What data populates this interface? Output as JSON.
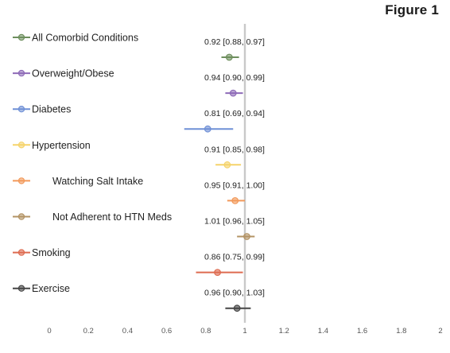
{
  "figure_label": "Figure 1",
  "chart_data": {
    "type": "forest",
    "title": "",
    "xlabel": "",
    "ylabel": "",
    "xlim": [
      0,
      2
    ],
    "x_ticks": [
      0,
      0.2,
      0.4,
      0.6,
      0.8,
      1,
      1.2,
      1.4,
      1.6,
      1.8,
      2
    ],
    "x_tick_labels": [
      "0",
      "0.2",
      "0.4",
      "0.6",
      "0.8",
      "1",
      "1.2",
      "1.4",
      "1.6",
      "1.8",
      "2"
    ],
    "reference_line": 1,
    "grid": false,
    "legend_placement": "left",
    "series": [
      {
        "name": "All Comorbid Conditions",
        "estimate": 0.92,
        "ci_low": 0.88,
        "ci_high": 0.97,
        "ci_label": "0.92 [0.88, 0.97]",
        "color": "#6e8f5e"
      },
      {
        "name": "Overweight/Obese",
        "estimate": 0.94,
        "ci_low": 0.9,
        "ci_high": 0.99,
        "ci_label": "0.94 [0.90, 0.99]",
        "color": "#8e6bb8"
      },
      {
        "name": "Diabetes",
        "estimate": 0.81,
        "ci_low": 0.69,
        "ci_high": 0.94,
        "ci_label": "0.81 [0.69, 0.94]",
        "color": "#6f90d6"
      },
      {
        "name": "Hypertension",
        "estimate": 0.91,
        "ci_low": 0.85,
        "ci_high": 0.98,
        "ci_label": "0.91 [0.85, 0.98]",
        "color": "#f5d36a"
      },
      {
        "name": "Watching Salt Intake",
        "estimate": 0.95,
        "ci_low": 0.91,
        "ci_high": 1.0,
        "ci_label": "0.95 [0.91, 1.00]",
        "color": "#f2995a",
        "indent": true
      },
      {
        "name": "Not Adherent to HTN Meds",
        "estimate": 1.01,
        "ci_low": 0.96,
        "ci_high": 1.05,
        "ci_label": "1.01 [0.96, 1.05]",
        "color": "#b39364",
        "indent": true
      },
      {
        "name": "Smoking",
        "estimate": 0.86,
        "ci_low": 0.75,
        "ci_high": 0.99,
        "ci_label": "0.86 [0.75, 0.99]",
        "color": "#de6b50"
      },
      {
        "name": "Exercise",
        "estimate": 0.96,
        "ci_low": 0.9,
        "ci_high": 1.03,
        "ci_label": "0.96 [0.90, 1.03]",
        "color": "#454545"
      }
    ]
  }
}
